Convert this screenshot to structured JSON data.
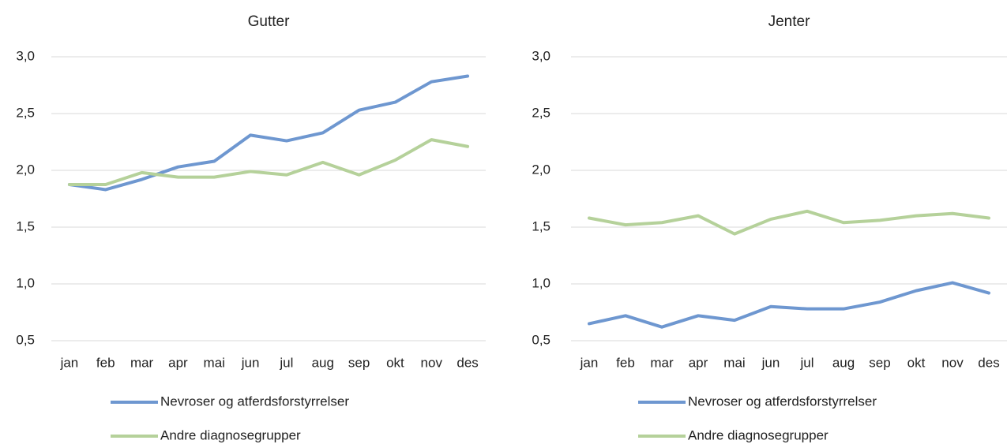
{
  "chart_data": [
    {
      "type": "line",
      "title": "Gutter",
      "categories": [
        "jan",
        "feb",
        "mar",
        "apr",
        "mai",
        "jun",
        "jul",
        "aug",
        "sep",
        "okt",
        "nov",
        "des"
      ],
      "series": [
        {
          "name": "Nevroser og atferdsforstyrrelser",
          "color": "#6e97d0",
          "values": [
            1.875,
            1.83,
            1.92,
            2.03,
            2.08,
            2.31,
            2.26,
            2.33,
            2.53,
            2.6,
            2.78,
            2.83
          ]
        },
        {
          "name": "Andre diagnosegrupper",
          "color": "#b5d19a",
          "values": [
            1.875,
            1.875,
            1.98,
            1.94,
            1.94,
            1.99,
            1.96,
            2.07,
            1.96,
            2.09,
            2.27,
            2.21
          ]
        }
      ],
      "ylim": [
        0.5,
        3.0
      ],
      "yticks": [
        {
          "value": 0.5,
          "label": "0,5"
        },
        {
          "value": 1.0,
          "label": "1,0"
        },
        {
          "value": 1.5,
          "label": "1,5"
        },
        {
          "value": 2.0,
          "label": "2,0"
        },
        {
          "value": 2.5,
          "label": "2,5"
        },
        {
          "value": 3.0,
          "label": "3,0"
        }
      ],
      "grid": true,
      "legend": "bottom"
    },
    {
      "type": "line",
      "title": "Jenter",
      "categories": [
        "jan",
        "feb",
        "mar",
        "apr",
        "mai",
        "jun",
        "jul",
        "aug",
        "sep",
        "okt",
        "nov",
        "des"
      ],
      "series": [
        {
          "name": "Nevroser og atferdsforstyrrelser",
          "color": "#6e97d0",
          "values": [
            0.65,
            0.72,
            0.62,
            0.72,
            0.68,
            0.8,
            0.78,
            0.78,
            0.84,
            0.94,
            1.01,
            0.92
          ]
        },
        {
          "name": "Andre diagnosegrupper",
          "color": "#b5d19a",
          "values": [
            1.58,
            1.52,
            1.54,
            1.6,
            1.44,
            1.57,
            1.64,
            1.54,
            1.56,
            1.6,
            1.62,
            1.58
          ]
        }
      ],
      "ylim": [
        0.5,
        3.0
      ],
      "yticks": [
        {
          "value": 0.5,
          "label": "0,5"
        },
        {
          "value": 1.0,
          "label": "1,0"
        },
        {
          "value": 1.5,
          "label": "1,5"
        },
        {
          "value": 2.0,
          "label": "2,0"
        },
        {
          "value": 2.5,
          "label": "2,5"
        },
        {
          "value": 3.0,
          "label": "3,0"
        }
      ],
      "grid": true,
      "legend": "bottom"
    }
  ]
}
